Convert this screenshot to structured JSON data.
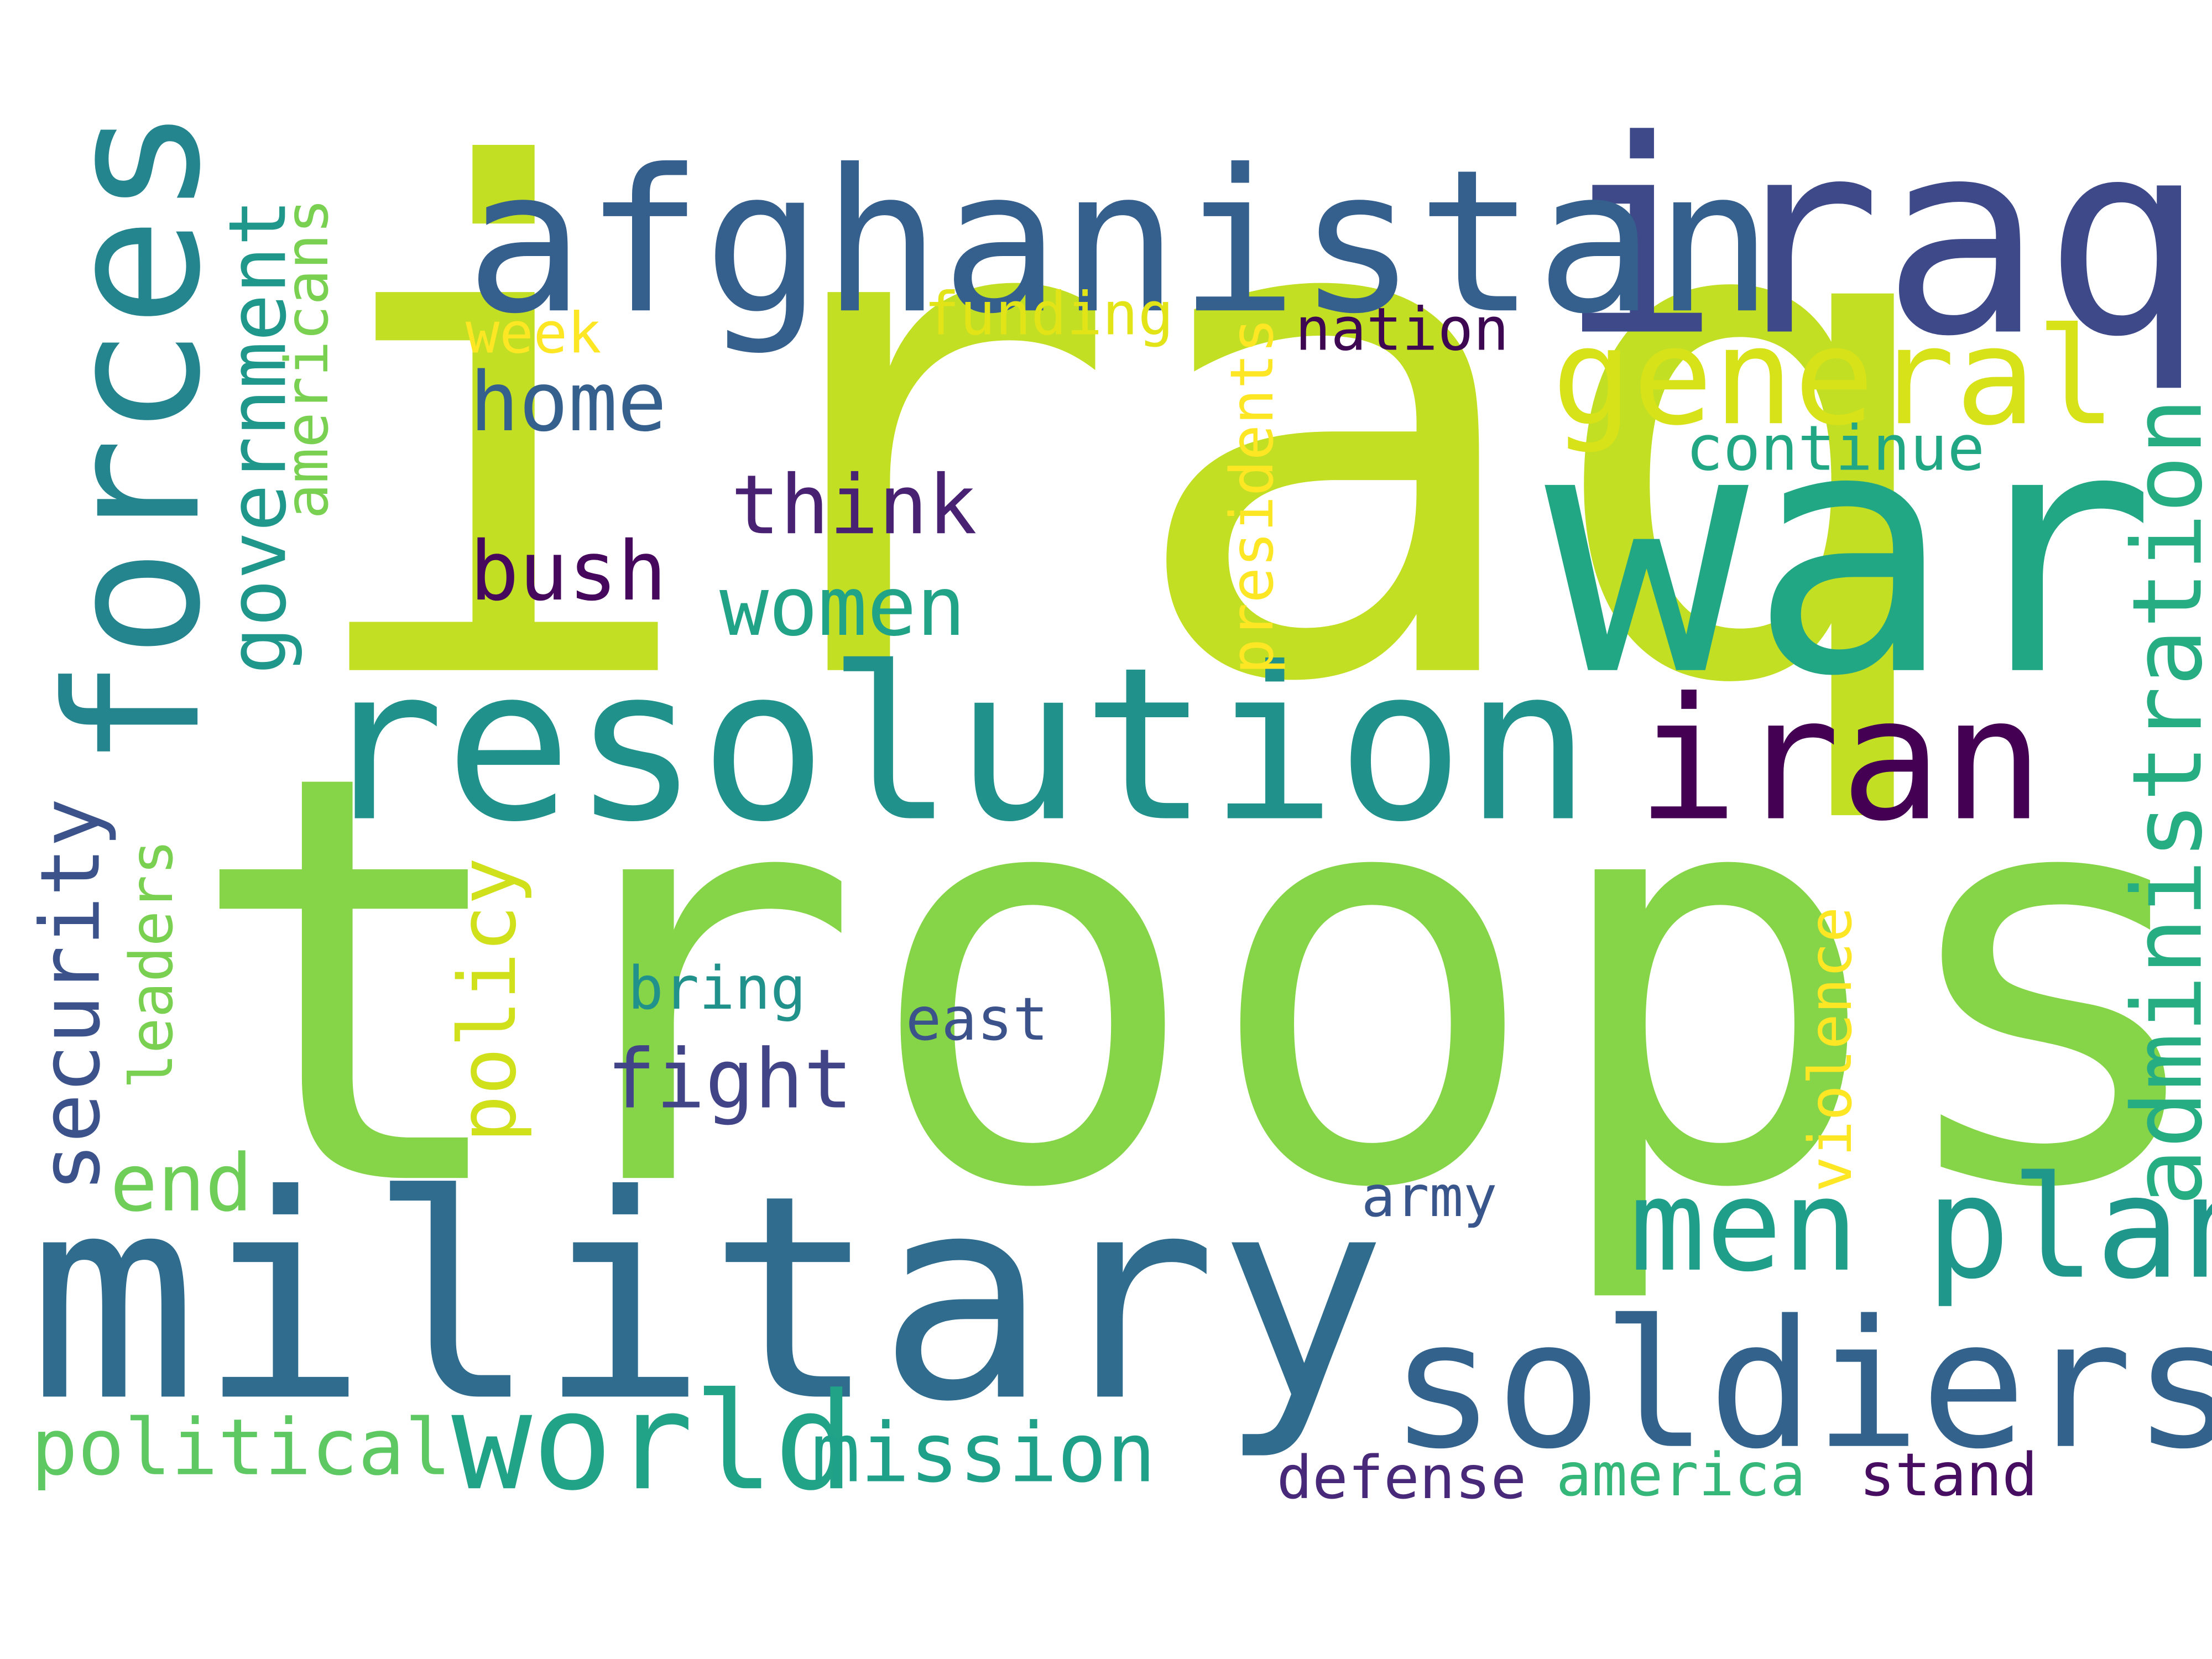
{
  "words": [
    {
      "id": "iraq",
      "text": "iraq",
      "color": "#c2df23",
      "orientation": "horizontal"
    },
    {
      "id": "troops",
      "text": "troops",
      "color": "#86d549",
      "orientation": "horizontal"
    },
    {
      "id": "war",
      "text": "war",
      "color": "#22a785",
      "orientation": "horizontal"
    },
    {
      "id": "iraqi",
      "text": "iraqi",
      "color": "#3e4989",
      "orientation": "horizontal"
    },
    {
      "id": "military",
      "text": "military",
      "color": "#2f6c8e",
      "orientation": "horizontal"
    },
    {
      "id": "afghanistan",
      "text": "afghanistan",
      "color": "#355f8d",
      "orientation": "horizontal"
    },
    {
      "id": "resolution",
      "text": "resolution",
      "color": "#21918c",
      "orientation": "horizontal"
    },
    {
      "id": "forces",
      "text": "forces",
      "color": "#25858e",
      "orientation": "vertical"
    },
    {
      "id": "soldiers",
      "text": "soldiers",
      "color": "#33638d",
      "orientation": "horizontal"
    },
    {
      "id": "iran",
      "text": "iran",
      "color": "#440154",
      "orientation": "horizontal"
    },
    {
      "id": "general",
      "text": "general",
      "color": "#d8e219",
      "orientation": "horizontal"
    },
    {
      "id": "plan",
      "text": "plan",
      "color": "#1f988b",
      "orientation": "horizontal"
    },
    {
      "id": "men",
      "text": "men",
      "color": "#1f9e89",
      "orientation": "horizontal"
    },
    {
      "id": "world",
      "text": "world",
      "color": "#20a386",
      "orientation": "horizontal"
    },
    {
      "id": "administration",
      "text": "administration",
      "color": "#26ad81",
      "orientation": "vertical"
    },
    {
      "id": "think",
      "text": "think",
      "color": "#482173",
      "orientation": "horizontal"
    },
    {
      "id": "bush",
      "text": "bush",
      "color": "#46085c",
      "orientation": "horizontal"
    },
    {
      "id": "home",
      "text": "home",
      "color": "#355f8d",
      "orientation": "horizontal"
    },
    {
      "id": "women",
      "text": "women",
      "color": "#20a386",
      "orientation": "horizontal"
    },
    {
      "id": "government",
      "text": "government",
      "color": "#1f988b",
      "orientation": "vertical"
    },
    {
      "id": "security",
      "text": "security",
      "color": "#3b528b",
      "orientation": "vertical"
    },
    {
      "id": "political",
      "text": "political",
      "color": "#5ec962",
      "orientation": "horizontal"
    },
    {
      "id": "mission",
      "text": "mission",
      "color": "#1fa088",
      "orientation": "horizontal"
    },
    {
      "id": "fight",
      "text": "fight",
      "color": "#414487",
      "orientation": "horizontal"
    },
    {
      "id": "policy",
      "text": "policy",
      "color": "#d0e11c",
      "orientation": "vertical"
    },
    {
      "id": "end",
      "text": "end",
      "color": "#6ece58",
      "orientation": "horizontal"
    },
    {
      "id": "continue",
      "text": "continue",
      "color": "#22a785",
      "orientation": "horizontal"
    },
    {
      "id": "presidents",
      "text": "presidents",
      "color": "#fde725",
      "orientation": "vertical"
    },
    {
      "id": "violence",
      "text": "violence",
      "color": "#fde725",
      "orientation": "vertical"
    },
    {
      "id": "leaders",
      "text": "leaders",
      "color": "#7ad151",
      "orientation": "vertical"
    },
    {
      "id": "americans",
      "text": "americans",
      "color": "#7ad151",
      "orientation": "vertical"
    },
    {
      "id": "nation",
      "text": "nation",
      "color": "#3e0751",
      "orientation": "horizontal"
    },
    {
      "id": "funding",
      "text": "funding",
      "color": "#e2e418",
      "orientation": "horizontal"
    },
    {
      "id": "week",
      "text": "week",
      "color": "#fde725",
      "orientation": "horizontal"
    },
    {
      "id": "bring",
      "text": "bring",
      "color": "#21918c",
      "orientation": "horizontal"
    },
    {
      "id": "east",
      "text": "east",
      "color": "#3b528b",
      "orientation": "horizontal"
    },
    {
      "id": "army",
      "text": "army",
      "color": "#39568c",
      "orientation": "horizontal"
    },
    {
      "id": "defense",
      "text": "defense",
      "color": "#482878",
      "orientation": "horizontal"
    },
    {
      "id": "america",
      "text": "america",
      "color": "#35b779",
      "orientation": "horizontal"
    },
    {
      "id": "stand",
      "text": "stand",
      "color": "#470d60",
      "orientation": "horizontal"
    }
  ]
}
